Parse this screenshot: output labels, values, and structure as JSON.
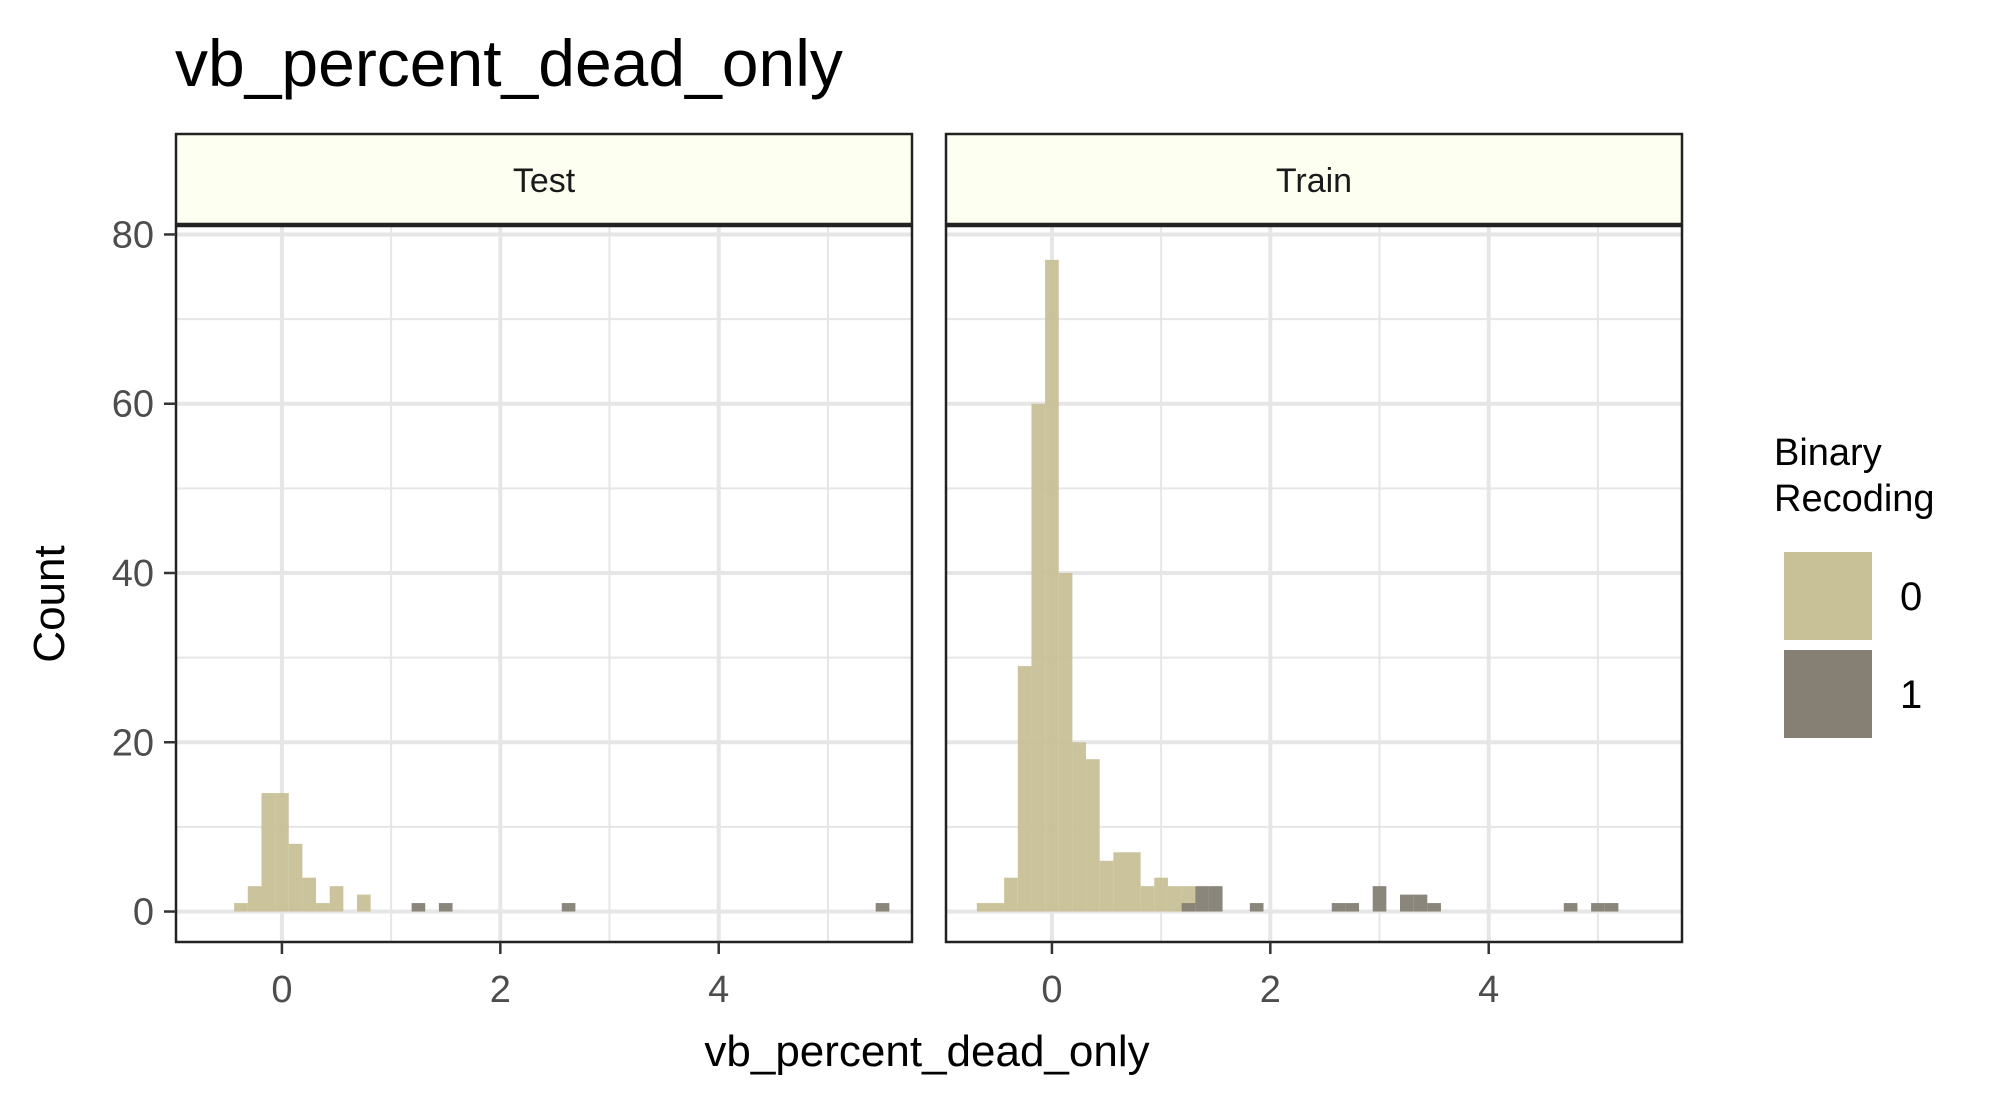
{
  "chart_data": {
    "type": "bar",
    "title": "vb_percent_dead_only",
    "xlabel": "vb_percent_dead_only",
    "ylabel": "Count",
    "xlim": [
      -0.97,
      5.77
    ],
    "ylim": [
      -3.6,
      81
    ],
    "x_ticks": [
      0,
      2,
      4
    ],
    "y_ticks": [
      0,
      20,
      40,
      60,
      80
    ],
    "bin_width": 0.125,
    "grid": true,
    "legend": {
      "title": "Binary Recoding",
      "position": "right",
      "entries": [
        {
          "label": "0",
          "color": "#c8c096"
        },
        {
          "label": "1",
          "color": "#857f74"
        }
      ]
    },
    "colors": {
      "0": "#c8c096",
      "1": "#857f74",
      "strip_fill": "#fdfff0",
      "grid": "#e6e6e6"
    },
    "panels": [
      {
        "strip": "Test",
        "series": [
          {
            "group": "0",
            "bins": [
              {
                "x": -0.375,
                "count": 1
              },
              {
                "x": -0.25,
                "count": 3
              },
              {
                "x": -0.125,
                "count": 14
              },
              {
                "x": 0.0,
                "count": 14
              },
              {
                "x": 0.125,
                "count": 8
              },
              {
                "x": 0.25,
                "count": 4
              },
              {
                "x": 0.375,
                "count": 1
              },
              {
                "x": 0.5,
                "count": 3
              },
              {
                "x": 0.75,
                "count": 2
              }
            ]
          },
          {
            "group": "1",
            "bins": [
              {
                "x": 1.25,
                "count": 1
              },
              {
                "x": 1.5,
                "count": 1
              },
              {
                "x": 2.625,
                "count": 1
              },
              {
                "x": 5.5,
                "count": 1
              }
            ]
          }
        ]
      },
      {
        "strip": "Train",
        "series": [
          {
            "group": "0",
            "bins": [
              {
                "x": -0.625,
                "count": 1
              },
              {
                "x": -0.5,
                "count": 1
              },
              {
                "x": -0.375,
                "count": 4
              },
              {
                "x": -0.25,
                "count": 29
              },
              {
                "x": -0.125,
                "count": 60
              },
              {
                "x": 0.0,
                "count": 77
              },
              {
                "x": 0.125,
                "count": 40
              },
              {
                "x": 0.25,
                "count": 20
              },
              {
                "x": 0.375,
                "count": 18
              },
              {
                "x": 0.5,
                "count": 6
              },
              {
                "x": 0.625,
                "count": 7
              },
              {
                "x": 0.75,
                "count": 7
              },
              {
                "x": 0.875,
                "count": 3
              },
              {
                "x": 1.0,
                "count": 4
              },
              {
                "x": 1.125,
                "count": 3
              },
              {
                "x": 1.25,
                "count": 3
              }
            ]
          },
          {
            "group": "1",
            "bins": [
              {
                "x": 1.25,
                "count": 1
              },
              {
                "x": 1.375,
                "count": 3
              },
              {
                "x": 1.5,
                "count": 3
              },
              {
                "x": 1.875,
                "count": 1
              },
              {
                "x": 2.625,
                "count": 1
              },
              {
                "x": 2.75,
                "count": 1
              },
              {
                "x": 3.0,
                "count": 3
              },
              {
                "x": 3.25,
                "count": 2
              },
              {
                "x": 3.375,
                "count": 2
              },
              {
                "x": 3.5,
                "count": 1
              },
              {
                "x": 4.75,
                "count": 1
              },
              {
                "x": 5.0,
                "count": 1
              },
              {
                "x": 5.125,
                "count": 1
              }
            ]
          }
        ]
      }
    ]
  }
}
